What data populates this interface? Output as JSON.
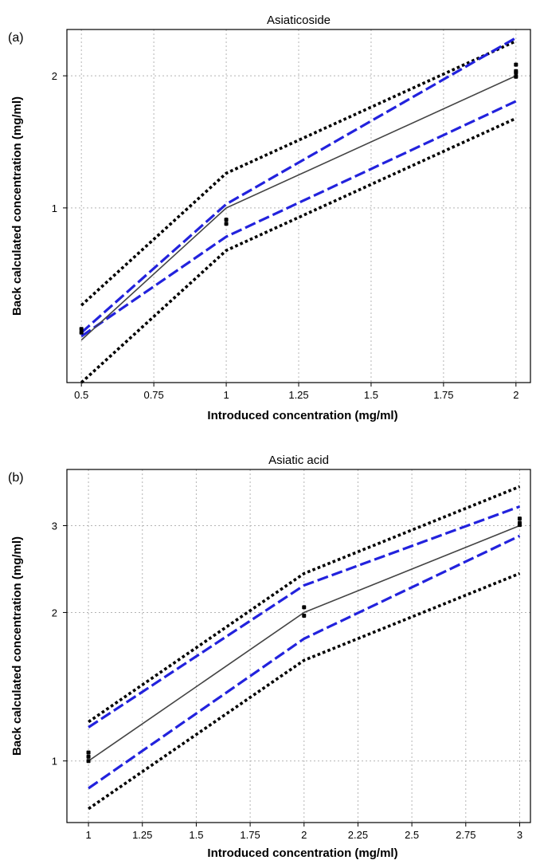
{
  "chart_data": [
    {
      "type": "line",
      "panel_label": "(a)",
      "title": "Asiaticoside",
      "xlabel": "Introduced concentration (mg/ml)",
      "ylabel": "Back calculated concentration (mg/ml)",
      "x_scale": "linear",
      "y_scale": "log",
      "xlim": [
        0.45,
        2.05
      ],
      "ylim": [
        0.4,
        2.55
      ],
      "x_ticks": [
        0.5,
        0.75,
        1,
        1.25,
        1.5,
        1.75,
        2
      ],
      "x_tick_labels": [
        "0.5",
        "0.75",
        "1",
        "1.25",
        "1.5",
        "1.75",
        "2"
      ],
      "y_ticks": [
        1,
        2
      ],
      "y_tick_labels": [
        "1",
        "2"
      ],
      "grid": true,
      "series": [
        {
          "style": "solid",
          "color": "#444444",
          "x": [
            0.5,
            1,
            2
          ],
          "y": [
            0.5,
            1.0,
            2.0
          ]
        },
        {
          "style": "dashed",
          "color": "#2222dd",
          "x": [
            0.5,
            1,
            2
          ],
          "y": [
            0.52,
            1.02,
            2.44
          ]
        },
        {
          "style": "dashed",
          "color": "#2222dd",
          "x": [
            0.5,
            1,
            2
          ],
          "y": [
            0.51,
            0.86,
            1.75
          ]
        },
        {
          "style": "dotted",
          "color": "#000000",
          "x": [
            0.5,
            1,
            2
          ],
          "y": [
            0.6,
            1.2,
            2.4
          ]
        },
        {
          "style": "dotted",
          "color": "#000000",
          "x": [
            0.5,
            1,
            2
          ],
          "y": [
            0.4,
            0.8,
            1.6
          ]
        }
      ],
      "points": [
        {
          "x": 0.5,
          "y": 0.52
        },
        {
          "x": 0.5,
          "y": 0.53
        },
        {
          "x": 1,
          "y": 0.92
        },
        {
          "x": 1,
          "y": 0.94
        },
        {
          "x": 2,
          "y": 1.99
        },
        {
          "x": 2,
          "y": 2.03
        },
        {
          "x": 2,
          "y": 2.05
        },
        {
          "x": 2,
          "y": 2.12
        }
      ]
    },
    {
      "type": "line",
      "panel_label": "(b)",
      "title": "Asiatic acid",
      "xlabel": "Introduced concentration (mg/ml)",
      "ylabel": "Back calculated concentration (mg/ml)",
      "x_scale": "linear",
      "y_scale": "log",
      "xlim": [
        0.9,
        3.05
      ],
      "ylim": [
        0.75,
        3.9
      ],
      "x_ticks": [
        1,
        1.25,
        1.5,
        1.75,
        2,
        2.25,
        2.5,
        2.75,
        3
      ],
      "x_tick_labels": [
        "1",
        "1.25",
        "1.5",
        "1.75",
        "2",
        "2.25",
        "2.5",
        "2.75",
        "3"
      ],
      "y_ticks": [
        1,
        2,
        3
      ],
      "y_tick_labels": [
        "1",
        "2",
        "3"
      ],
      "grid": true,
      "series": [
        {
          "style": "solid",
          "color": "#444444",
          "x": [
            1,
            2,
            3
          ],
          "y": [
            1.0,
            2.0,
            3.0
          ]
        },
        {
          "style": "dashed",
          "color": "#2222dd",
          "x": [
            1,
            2,
            3
          ],
          "y": [
            1.17,
            2.27,
            3.28
          ]
        },
        {
          "style": "dashed",
          "color": "#2222dd",
          "x": [
            1,
            2,
            3
          ],
          "y": [
            0.88,
            1.77,
            2.86
          ]
        },
        {
          "style": "dotted",
          "color": "#000000",
          "x": [
            1,
            2,
            3
          ],
          "y": [
            1.2,
            2.4,
            3.6
          ]
        },
        {
          "style": "dotted",
          "color": "#000000",
          "x": [
            1,
            2,
            3
          ],
          "y": [
            0.8,
            1.6,
            2.4
          ]
        }
      ],
      "points": [
        {
          "x": 1,
          "y": 1.0
        },
        {
          "x": 1,
          "y": 1.02
        },
        {
          "x": 1,
          "y": 1.04
        },
        {
          "x": 2,
          "y": 1.97
        },
        {
          "x": 2,
          "y": 2.05
        },
        {
          "x": 3,
          "y": 3.01
        },
        {
          "x": 3,
          "y": 3.04
        },
        {
          "x": 3,
          "y": 3.1
        }
      ]
    }
  ]
}
